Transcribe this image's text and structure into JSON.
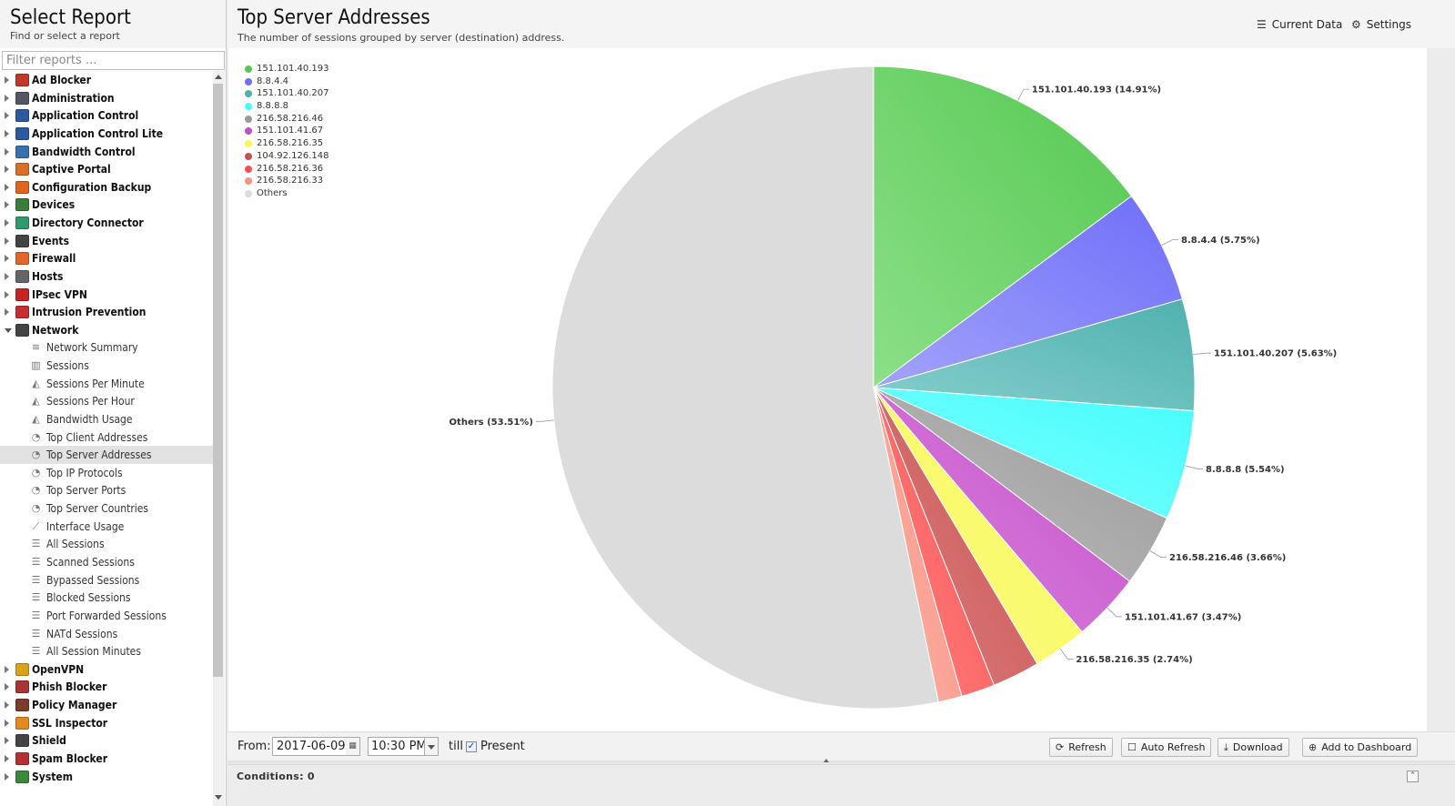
{
  "sidebar": {
    "title": "Select Report",
    "subtitle": "Find or select a report",
    "filter_placeholder": "Filter reports ...",
    "items": [
      {
        "label": "Ad Blocker",
        "type": "app",
        "icon": "ad-blocker-icon",
        "color": "#c0392b"
      },
      {
        "label": "Administration",
        "type": "app",
        "icon": "administration-icon",
        "color": "#556"
      },
      {
        "label": "Application Control",
        "type": "app",
        "icon": "application-control-icon",
        "color": "#2c5aa0"
      },
      {
        "label": "Application Control Lite",
        "type": "app",
        "icon": "application-control-lite-icon",
        "color": "#2c5aa0"
      },
      {
        "label": "Bandwidth Control",
        "type": "app",
        "icon": "bandwidth-control-icon",
        "color": "#3a6fb0"
      },
      {
        "label": "Captive Portal",
        "type": "app",
        "icon": "captive-portal-icon",
        "color": "#d9702a"
      },
      {
        "label": "Configuration Backup",
        "type": "app",
        "icon": "configuration-backup-icon",
        "color": "#e0661f"
      },
      {
        "label": "Devices",
        "type": "app",
        "icon": "devices-icon",
        "color": "#3b7d3b"
      },
      {
        "label": "Directory Connector",
        "type": "app",
        "icon": "directory-connector-icon",
        "color": "#2f9a6b"
      },
      {
        "label": "Events",
        "type": "app",
        "icon": "events-icon",
        "color": "#444"
      },
      {
        "label": "Firewall",
        "type": "app",
        "icon": "firewall-icon",
        "color": "#e0662a"
      },
      {
        "label": "Hosts",
        "type": "app",
        "icon": "hosts-icon",
        "color": "#666"
      },
      {
        "label": "IPsec VPN",
        "type": "app",
        "icon": "ipsec-vpn-icon",
        "color": "#c72424"
      },
      {
        "label": "Intrusion Prevention",
        "type": "app",
        "icon": "intrusion-prevention-icon",
        "color": "#c62f2f"
      },
      {
        "label": "Network",
        "type": "app",
        "icon": "network-icon",
        "color": "#444",
        "open": true
      },
      {
        "label": "Network Summary",
        "type": "report",
        "icon": "text-report-icon"
      },
      {
        "label": "Sessions",
        "type": "report",
        "icon": "bar-chart-icon"
      },
      {
        "label": "Sessions Per Minute",
        "type": "report",
        "icon": "area-chart-icon"
      },
      {
        "label": "Sessions Per Hour",
        "type": "report",
        "icon": "area-chart-icon"
      },
      {
        "label": "Bandwidth Usage",
        "type": "report",
        "icon": "area-chart-icon"
      },
      {
        "label": "Top Client Addresses",
        "type": "report",
        "icon": "pie-chart-icon"
      },
      {
        "label": "Top Server Addresses",
        "type": "report",
        "icon": "pie-chart-icon",
        "selected": true
      },
      {
        "label": "Top IP Protocols",
        "type": "report",
        "icon": "pie-chart-icon"
      },
      {
        "label": "Top Server Ports",
        "type": "report",
        "icon": "pie-chart-icon"
      },
      {
        "label": "Top Server Countries",
        "type": "report",
        "icon": "pie-chart-icon"
      },
      {
        "label": "Interface Usage",
        "type": "report",
        "icon": "line-chart-icon"
      },
      {
        "label": "All Sessions",
        "type": "report",
        "icon": "list-icon"
      },
      {
        "label": "Scanned Sessions",
        "type": "report",
        "icon": "list-icon"
      },
      {
        "label": "Bypassed Sessions",
        "type": "report",
        "icon": "list-icon"
      },
      {
        "label": "Blocked Sessions",
        "type": "report",
        "icon": "list-icon"
      },
      {
        "label": "Port Forwarded Sessions",
        "type": "report",
        "icon": "list-icon"
      },
      {
        "label": "NATd Sessions",
        "type": "report",
        "icon": "list-icon"
      },
      {
        "label": "All Session Minutes",
        "type": "report",
        "icon": "list-icon"
      },
      {
        "label": "OpenVPN",
        "type": "app",
        "icon": "openvpn-icon",
        "color": "#d9a21b"
      },
      {
        "label": "Phish Blocker",
        "type": "app",
        "icon": "phish-blocker-icon",
        "color": "#a33"
      },
      {
        "label": "Policy Manager",
        "type": "app",
        "icon": "policy-manager-icon",
        "color": "#7a3b2b"
      },
      {
        "label": "SSL Inspector",
        "type": "app",
        "icon": "ssl-inspector-icon",
        "color": "#e08a1f"
      },
      {
        "label": "Shield",
        "type": "app",
        "icon": "shield-icon",
        "color": "#444"
      },
      {
        "label": "Spam Blocker",
        "type": "app",
        "icon": "spam-blocker-icon",
        "color": "#b53030"
      },
      {
        "label": "System",
        "type": "app",
        "icon": "system-icon",
        "color": "#3a8a3a"
      }
    ]
  },
  "report": {
    "title": "Top Server Addresses",
    "description": "The number of sessions grouped by server (destination) address.",
    "current_data_label": "Current Data",
    "settings_label": "Settings"
  },
  "chart_data": {
    "type": "pie",
    "title": "",
    "legend_position": "top-left",
    "slices": [
      {
        "label": "151.101.40.193",
        "value": 14.91,
        "color": "#55c852",
        "light": "#8ce087"
      },
      {
        "label": "8.8.4.4",
        "value": 5.75,
        "color": "#6e6ef9",
        "light": "#a3a3fb"
      },
      {
        "label": "151.101.40.207",
        "value": 5.63,
        "color": "#4fb1ae",
        "light": "#86cfcd"
      },
      {
        "label": "8.8.8.8",
        "value": 5.54,
        "color": "#45fdfd",
        "light": "#7ffefe"
      },
      {
        "label": "216.58.216.46",
        "value": 3.66,
        "color": "#9a9a9a",
        "light": "#bdbdbd"
      },
      {
        "label": "151.101.41.67",
        "value": 3.47,
        "color": "#c44ec9",
        "light": "#db86df"
      },
      {
        "label": "216.58.216.35",
        "value": 2.74,
        "color": "#f8f851",
        "light": "#fbfb8c"
      },
      {
        "label": "104.92.126.148",
        "value": 2.4,
        "color": "#c94e4e",
        "light": "#dc8484"
      },
      {
        "label": "216.58.216.36",
        "value": 1.7,
        "color": "#fc4e4e",
        "light": "#fd8787"
      },
      {
        "label": "216.58.216.33",
        "value": 1.2,
        "color": "#f99282",
        "light": "#fbb3a8"
      },
      {
        "label": "Others",
        "value": 53.51,
        "color": "#dcdcdc",
        "light": "#dcdcdc"
      }
    ],
    "data_labels": [
      "151.101.40.193 (14.91%)",
      "8.8.4.4 (5.75%)",
      "151.101.40.207 (5.63%)",
      "8.8.8.8 (5.54%)",
      "216.58.216.46 (3.66%)",
      "151.101.41.67 (3.47%)",
      "216.58.216.35 (2.74%)",
      "",
      "",
      "",
      "Others (53.51%)"
    ]
  },
  "bottom": {
    "from_label": "From:",
    "date": "2017-06-09",
    "time": "10:30 PM",
    "till_label": "till",
    "present_label": "Present",
    "refresh": "Refresh",
    "auto_refresh": "Auto Refresh",
    "download": "Download",
    "add_dashboard": "Add to Dashboard",
    "conditions": "Conditions: 0"
  }
}
